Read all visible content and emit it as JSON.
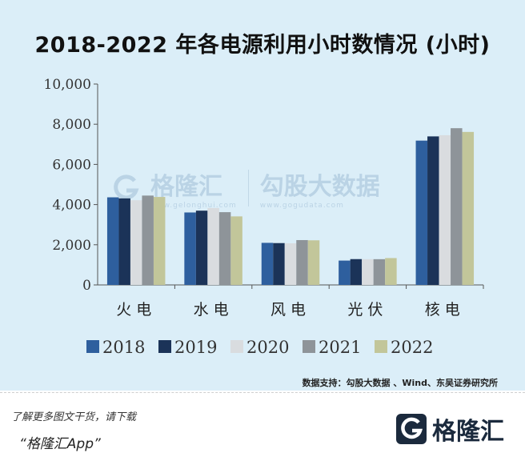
{
  "chart_data": {
    "type": "bar",
    "title": "2018-2022 年各电源利用小时数情况 (小时)",
    "categories": [
      "火电",
      "水电",
      "风电",
      "光伏",
      "核电"
    ],
    "series": [
      {
        "name": "2018",
        "values": [
          4361,
          3607,
          2095,
          1212,
          7184
        ],
        "color": "#2e5f9e"
      },
      {
        "name": "2019",
        "values": [
          4307,
          3697,
          2082,
          1285,
          7394
        ],
        "color": "#1b3358"
      },
      {
        "name": "2020",
        "values": [
          4216,
          3827,
          2073,
          1281,
          7453
        ],
        "color": "#d9dcdf"
      },
      {
        "name": "2021",
        "values": [
          4448,
          3622,
          2232,
          1281,
          7802
        ],
        "color": "#8e9499"
      },
      {
        "name": "2022",
        "values": [
          4379,
          3412,
          2221,
          1337,
          7616
        ],
        "color": "#c2c69a"
      }
    ],
    "ylim": [
      0,
      10000
    ],
    "yticks": [
      "0",
      "2,000",
      "4,000",
      "6,000",
      "8,000",
      "10,000"
    ],
    "ytick_values": [
      0,
      2000,
      4000,
      6000,
      8000,
      10000
    ],
    "legend_position": "bottom",
    "grid": false
  },
  "source": "数据支持：勾股大数据 、Wind、东吴证券研究所",
  "watermark": {
    "brand": "格隆汇",
    "brand_url": "www.gelonghui.com",
    "partner": "勾股大数据",
    "partner_url": "www.gogudata.com"
  },
  "footer": {
    "cta": "了解更多图文干货，请下载",
    "app": "“格隆汇App”",
    "logo_text": "格隆汇",
    "logo_icon": "g-logo-icon"
  }
}
